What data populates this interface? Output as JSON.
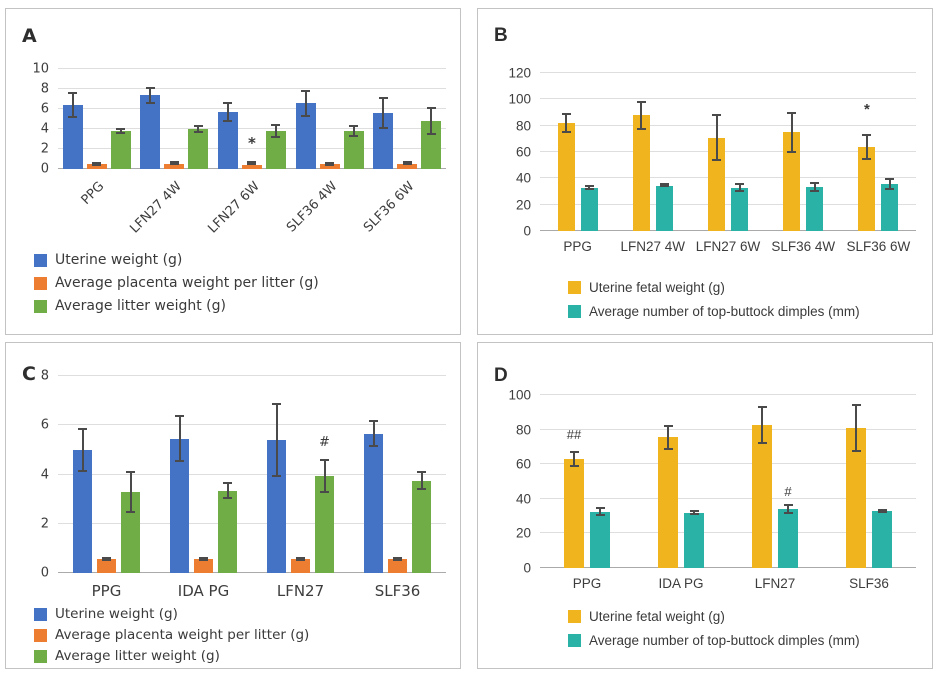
{
  "chart_data": [
    {
      "type": "bar",
      "panel": "A",
      "categories": [
        "PPG",
        "LFN27 4W",
        "LFN27 6W",
        "SLF36 4W",
        "SLF36 6W"
      ],
      "ylim": [
        0,
        10
      ],
      "yticks": [
        0,
        2,
        4,
        6,
        8,
        10
      ],
      "grid": true,
      "x_labels_rotated": true,
      "legend_position": "bottom-left",
      "series": [
        {
          "name": "Uterine weight (g)",
          "color": "#4472C4",
          "values": [
            6.4,
            7.4,
            5.75,
            6.6,
            5.65
          ],
          "errors": [
            1.3,
            0.85,
            1.0,
            1.35,
            1.6
          ]
        },
        {
          "name": "Average placenta weight per litter (g)",
          "color": "#ED7D31",
          "values": [
            0.5,
            0.5,
            0.45,
            0.55,
            0.5
          ],
          "errors": [
            0.15,
            0.1,
            0.08,
            0.2,
            0.08
          ]
        },
        {
          "name": "Average litter weight (g)",
          "color": "#70AD47",
          "values": [
            3.85,
            4.0,
            3.85,
            3.8,
            4.85
          ],
          "errors": [
            0.3,
            0.4,
            0.7,
            0.6,
            1.4
          ]
        }
      ],
      "annotations": [
        {
          "category_index": 2,
          "series_index": 1,
          "y": 2.1,
          "text": "*"
        }
      ]
    },
    {
      "type": "bar",
      "panel": "B",
      "categories": [
        "PPG",
        "LFN27 4W",
        "LFN27 6W",
        "SLF36 4W",
        "SLF36 6W"
      ],
      "ylim": [
        0,
        120
      ],
      "yticks": [
        0,
        20,
        40,
        60,
        80,
        100,
        120
      ],
      "grid": true,
      "x_labels_rotated": false,
      "legend_position": "bottom-left",
      "series": [
        {
          "name": "Uterine fetal weight (g)",
          "color": "#F0B41F",
          "values": [
            82,
            88,
            71,
            75,
            64
          ],
          "errors": [
            7.5,
            11,
            18,
            15.5,
            10
          ]
        },
        {
          "name": "Average number of top-buttock dimples (mm)",
          "color": "#2BB2A6",
          "values": [
            33,
            34.5,
            33,
            33.5,
            35.5
          ],
          "errors": [
            2,
            0.8,
            3.5,
            4,
            4.7
          ]
        }
      ],
      "annotations": [
        {
          "category_index": 4,
          "series_index": 0,
          "y": 88,
          "text": "*"
        }
      ]
    },
    {
      "type": "bar",
      "panel": "C",
      "categories": [
        "PPG",
        "IDA PG",
        "LFN27",
        "SLF36"
      ],
      "ylim": [
        0,
        8
      ],
      "yticks": [
        0,
        2,
        4,
        6,
        8
      ],
      "grid": true,
      "x_labels_rotated": false,
      "legend_position": "bottom-left",
      "series": [
        {
          "name": "Uterine weight (g)",
          "color": "#4472C4",
          "values": [
            5.0,
            5.45,
            5.4,
            5.65
          ],
          "errors": [
            0.9,
            0.95,
            1.5,
            0.55
          ]
        },
        {
          "name": "Average placenta weight per litter (g)",
          "color": "#ED7D31",
          "values": [
            0.55,
            0.55,
            0.55,
            0.55
          ],
          "errors": [
            0.08,
            0.08,
            0.08,
            0.06
          ]
        },
        {
          "name": "Average litter weight (g)",
          "color": "#70AD47",
          "values": [
            3.3,
            3.35,
            3.95,
            3.75
          ],
          "errors": [
            0.85,
            0.35,
            0.7,
            0.38
          ]
        }
      ],
      "annotations": [
        {
          "category_index": 2,
          "series_index": 2,
          "y": 5.05,
          "text": "#"
        }
      ]
    },
    {
      "type": "bar",
      "panel": "D",
      "categories": [
        "PPG",
        "IDA PG",
        "LFN27",
        "SLF36"
      ],
      "ylim": [
        0,
        100
      ],
      "yticks": [
        0,
        20,
        40,
        60,
        80,
        100
      ],
      "grid": true,
      "x_labels_rotated": false,
      "legend_position": "bottom-left",
      "series": [
        {
          "name": "Uterine fetal weight (g)",
          "color": "#F0B41F",
          "values": [
            63,
            75.5,
            82.5,
            81
          ],
          "errors": [
            4.5,
            7,
            11,
            14
          ]
        },
        {
          "name": "Average number of top-buttock dimples (mm)",
          "color": "#2BB2A6",
          "values": [
            32.5,
            32,
            34,
            33
          ],
          "errors": [
            2.5,
            1.5,
            3,
            1.2
          ]
        }
      ],
      "annotations": [
        {
          "category_index": 0,
          "series_index": 0,
          "y": 73.5,
          "text": "##"
        },
        {
          "category_index": 2,
          "series_index": 1,
          "y": 40.5,
          "text": "#"
        }
      ]
    }
  ]
}
